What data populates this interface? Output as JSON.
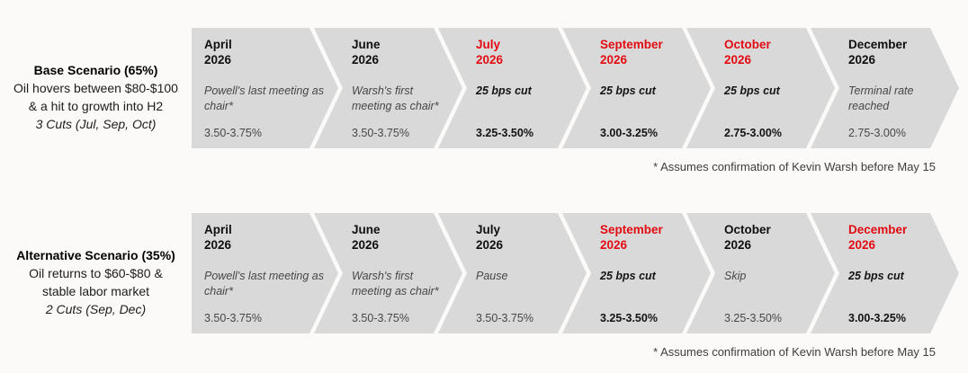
{
  "colors": {
    "page-bg": "#fbfaf9",
    "chevron-bg": "#d9d9d9",
    "highlight-red": "#e30b12",
    "month-black": "#0f0f0f",
    "body-gray": "#474747"
  },
  "scenarios": [
    {
      "title": "Base Scenario (65%)",
      "description_lines": [
        "Oil hovers between $80-$100",
        "& a hit to growth into H2"
      ],
      "summary": "3 Cuts (Jul, Sep, Oct)",
      "footnote": "* Assumes confirmation of Kevin Warsh before May 15",
      "steps": [
        {
          "month": "April",
          "year": "2026",
          "event": "Powell's last meeting as chair*",
          "rate": "3.50-3.75%",
          "highlight": false
        },
        {
          "month": "June",
          "year": "2026",
          "event": "Warsh's first meeting as chair*",
          "rate": "3.50-3.75%",
          "highlight": false
        },
        {
          "month": "July",
          "year": "2026",
          "event": "25 bps cut",
          "rate": "3.25-3.50%",
          "highlight": true
        },
        {
          "month": "September",
          "year": "2026",
          "event": "25 bps cut",
          "rate": "3.00-3.25%",
          "highlight": true
        },
        {
          "month": "October",
          "year": "2026",
          "event": "25 bps cut",
          "rate": "2.75-3.00%",
          "highlight": true
        },
        {
          "month": "December",
          "year": "2026",
          "event": "Terminal rate reached",
          "rate": "2.75-3.00%",
          "highlight": false
        }
      ]
    },
    {
      "title": "Alternative Scenario (35%)",
      "description_lines": [
        "Oil returns to $60-$80 &",
        "stable labor market"
      ],
      "summary": "2 Cuts (Sep, Dec)",
      "footnote": "* Assumes confirmation of Kevin Warsh before May 15",
      "steps": [
        {
          "month": "April",
          "year": "2026",
          "event": "Powell's last meeting as chair*",
          "rate": "3.50-3.75%",
          "highlight": false
        },
        {
          "month": "June",
          "year": "2026",
          "event": "Warsh's first meeting as chair*",
          "rate": "3.50-3.75%",
          "highlight": false
        },
        {
          "month": "July",
          "year": "2026",
          "event": "Pause",
          "rate": "3.50-3.75%",
          "highlight": false
        },
        {
          "month": "September",
          "year": "2026",
          "event": "25 bps cut",
          "rate": "3.25-3.50%",
          "highlight": true
        },
        {
          "month": "October",
          "year": "2026",
          "event": "Skip",
          "rate": "3.25-3.50%",
          "highlight": false
        },
        {
          "month": "December",
          "year": "2026",
          "event": "25 bps cut",
          "rate": "3.00-3.25%",
          "highlight": true
        }
      ]
    }
  ]
}
